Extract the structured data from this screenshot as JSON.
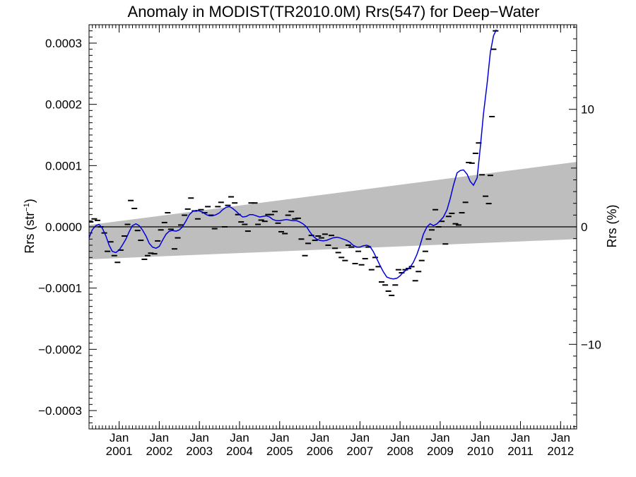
{
  "chart_data": {
    "type": "line",
    "title": "Anomaly in MODIST(TR2010.0M) Rrs(547) for Deep−Water",
    "ylabel_left_base": "Rrs (str",
    "ylabel_left_sup": "−1",
    "ylabel_left_end": ")",
    "ylabel_right": "Rrs (%)",
    "xlim": [
      2000.25,
      2012.4
    ],
    "ylim": [
      -0.00033,
      0.00033
    ],
    "ylim_right_pct": [
      -17.2,
      17.2
    ],
    "x_ticks": [
      {
        "x": 2001.0,
        "label1": "Jan",
        "label2": "2001"
      },
      {
        "x": 2002.0,
        "label1": "Jan",
        "label2": "2002"
      },
      {
        "x": 2003.0,
        "label1": "Jan",
        "label2": "2003"
      },
      {
        "x": 2004.0,
        "label1": "Jan",
        "label2": "2004"
      },
      {
        "x": 2005.0,
        "label1": "Jan",
        "label2": "2005"
      },
      {
        "x": 2006.0,
        "label1": "Jan",
        "label2": "2006"
      },
      {
        "x": 2007.0,
        "label1": "Jan",
        "label2": "2007"
      },
      {
        "x": 2008.0,
        "label1": "Jan",
        "label2": "2008"
      },
      {
        "x": 2009.0,
        "label1": "Jan",
        "label2": "2009"
      },
      {
        "x": 2010.0,
        "label1": "Jan",
        "label2": "2010"
      },
      {
        "x": 2011.0,
        "label1": "Jan",
        "label2": "2011"
      },
      {
        "x": 2012.0,
        "label1": "Jan",
        "label2": "2012"
      }
    ],
    "y_ticks_left": [
      {
        "v": 0.0003,
        "label": "0.0003"
      },
      {
        "v": 0.0002,
        "label": "0.0002"
      },
      {
        "v": 0.0001,
        "label": "0.0001"
      },
      {
        "v": 0.0,
        "label": "0.0000"
      },
      {
        "v": -0.0001,
        "label": "−0.0001"
      },
      {
        "v": -0.0002,
        "label": "−0.0002"
      },
      {
        "v": -0.0003,
        "label": "−0.0003"
      }
    ],
    "y_ticks_right": [
      {
        "v": 10,
        "label": "10"
      },
      {
        "v": 0,
        "label": "0"
      },
      {
        "v": -10,
        "label": "−10"
      }
    ],
    "band": {
      "color": "#bebebe",
      "x": [
        2000.25,
        2012.4
      ],
      "upper": [
        3e-06,
        0.000106
      ],
      "lower": [
        -5.3e-05,
        -2e-05
      ]
    },
    "zero_line": true,
    "smooth_color": "#0000dd",
    "smooth": [
      [
        2000.25,
        -1.8e-05
      ],
      [
        2000.33,
        -5e-06
      ],
      [
        2000.42,
        2e-06
      ],
      [
        2000.5,
        4e-06
      ],
      [
        2000.58,
        -2e-06
      ],
      [
        2000.67,
        -1.5e-05
      ],
      [
        2000.75,
        -3e-05
      ],
      [
        2000.83,
        -4e-05
      ],
      [
        2000.92,
        -4.2e-05
      ],
      [
        2001.0,
        -3.8e-05
      ],
      [
        2001.08,
        -3e-05
      ],
      [
        2001.17,
        -2e-05
      ],
      [
        2001.25,
        -8e-06
      ],
      [
        2001.33,
        2e-06
      ],
      [
        2001.42,
        5e-06
      ],
      [
        2001.5,
        2e-06
      ],
      [
        2001.58,
        -5e-06
      ],
      [
        2001.67,
        -1.5e-05
      ],
      [
        2001.75,
        -2.7e-05
      ],
      [
        2001.83,
        -3.3e-05
      ],
      [
        2001.92,
        -3.5e-05
      ],
      [
        2002.0,
        -3.2e-05
      ],
      [
        2002.08,
        -2.2e-05
      ],
      [
        2002.17,
        -1.2e-05
      ],
      [
        2002.25,
        -7e-06
      ],
      [
        2002.33,
        -6e-06
      ],
      [
        2002.42,
        -7e-06
      ],
      [
        2002.5,
        -5e-06
      ],
      [
        2002.58,
        0.0
      ],
      [
        2002.67,
        1e-05
      ],
      [
        2002.75,
        2e-05
      ],
      [
        2002.83,
        2.5e-05
      ],
      [
        2002.92,
        2.7e-05
      ],
      [
        2003.0,
        2.6e-05
      ],
      [
        2003.08,
        2.4e-05
      ],
      [
        2003.17,
        2e-05
      ],
      [
        2003.25,
        1.8e-05
      ],
      [
        2003.33,
        1.8e-05
      ],
      [
        2003.42,
        2e-05
      ],
      [
        2003.5,
        2.3e-05
      ],
      [
        2003.58,
        2.8e-05
      ],
      [
        2003.67,
        3.2e-05
      ],
      [
        2003.75,
        3.3e-05
      ],
      [
        2003.83,
        3e-05
      ],
      [
        2003.92,
        2.5e-05
      ],
      [
        2004.0,
        2e-05
      ],
      [
        2004.08,
        1.6e-05
      ],
      [
        2004.17,
        1.7e-05
      ],
      [
        2004.25,
        2e-05
      ],
      [
        2004.33,
        2e-05
      ],
      [
        2004.42,
        1.8e-05
      ],
      [
        2004.5,
        1.6e-05
      ],
      [
        2004.58,
        1.7e-05
      ],
      [
        2004.67,
        1.8e-05
      ],
      [
        2004.75,
        1.6e-05
      ],
      [
        2004.83,
        1.2e-05
      ],
      [
        2004.92,
        1e-05
      ],
      [
        2005.0,
        1e-05
      ],
      [
        2005.08,
        1.1e-05
      ],
      [
        2005.17,
        1.2e-05
      ],
      [
        2005.25,
        1.1e-05
      ],
      [
        2005.33,
        1e-05
      ],
      [
        2005.42,
        1e-05
      ],
      [
        2005.5,
        8e-06
      ],
      [
        2005.58,
        5e-06
      ],
      [
        2005.67,
        0.0
      ],
      [
        2005.75,
        -8e-06
      ],
      [
        2005.83,
        -1.5e-05
      ],
      [
        2005.92,
        -2e-05
      ],
      [
        2006.0,
        -2.2e-05
      ],
      [
        2006.08,
        -2.3e-05
      ],
      [
        2006.17,
        -2.2e-05
      ],
      [
        2006.25,
        -2e-05
      ],
      [
        2006.33,
        -1.8e-05
      ],
      [
        2006.42,
        -1.7e-05
      ],
      [
        2006.5,
        -1.8e-05
      ],
      [
        2006.58,
        -2e-05
      ],
      [
        2006.67,
        -2.2e-05
      ],
      [
        2006.75,
        -2.5e-05
      ],
      [
        2006.83,
        -3e-05
      ],
      [
        2006.92,
        -3.3e-05
      ],
      [
        2007.0,
        -3.3e-05
      ],
      [
        2007.08,
        -3.1e-05
      ],
      [
        2007.17,
        -3e-05
      ],
      [
        2007.25,
        -3.2e-05
      ],
      [
        2007.33,
        -4e-05
      ],
      [
        2007.42,
        -5.2e-05
      ],
      [
        2007.5,
        -6.3e-05
      ],
      [
        2007.58,
        -7.3e-05
      ],
      [
        2007.67,
        -8.2e-05
      ],
      [
        2007.75,
        -8.4e-05
      ],
      [
        2007.83,
        -8.5e-05
      ],
      [
        2007.92,
        -8.4e-05
      ],
      [
        2008.0,
        -8e-05
      ],
      [
        2008.08,
        -7.4e-05
      ],
      [
        2008.17,
        -7e-05
      ],
      [
        2008.25,
        -6.6e-05
      ],
      [
        2008.33,
        -5.8e-05
      ],
      [
        2008.42,
        -4.5e-05
      ],
      [
        2008.5,
        -3e-05
      ],
      [
        2008.58,
        -1.2e-05
      ],
      [
        2008.67,
        0.0
      ],
      [
        2008.75,
        5e-06
      ],
      [
        2008.83,
        2e-06
      ],
      [
        2008.92,
        5e-06
      ],
      [
        2009.0,
        1e-05
      ],
      [
        2009.08,
        1.6e-05
      ],
      [
        2009.17,
        2.8e-05
      ],
      [
        2009.25,
        4.6e-05
      ],
      [
        2009.33,
        6.8e-05
      ],
      [
        2009.42,
        8.8e-05
      ],
      [
        2009.5,
        9.2e-05
      ],
      [
        2009.58,
        9.3e-05
      ],
      [
        2009.67,
        8.6e-05
      ],
      [
        2009.75,
        7.4e-05
      ],
      [
        2009.83,
        6.8e-05
      ],
      [
        2009.92,
        8e-05
      ],
      [
        2010.0,
        0.00013
      ],
      [
        2010.08,
        0.000185
      ],
      [
        2010.17,
        0.000235
      ],
      [
        2010.25,
        0.000285
      ],
      [
        2010.33,
        0.000312
      ],
      [
        2010.4,
        0.000322
      ]
    ],
    "points": [
      [
        2000.29,
        8e-06
      ],
      [
        2000.38,
        1.3e-05
      ],
      [
        2000.46,
        1.05e-05
      ],
      [
        2000.54,
        0.0
      ],
      [
        2000.63,
        -1e-05
      ],
      [
        2000.71,
        -4e-05
      ],
      [
        2000.79,
        -2.45e-05
      ],
      [
        2000.88,
        -4.7e-05
      ],
      [
        2000.96,
        -5.8e-05
      ],
      [
        2001.04,
        -3.8e-05
      ],
      [
        2001.13,
        -1.5e-05
      ],
      [
        2001.21,
        4e-06
      ],
      [
        2001.29,
        4.3e-05
      ],
      [
        2001.38,
        3e-05
      ],
      [
        2001.46,
        -6e-06
      ],
      [
        2001.54,
        -2.2e-05
      ],
      [
        2001.63,
        -5.3e-05
      ],
      [
        2001.71,
        -4.7e-05
      ],
      [
        2001.79,
        -4.3e-05
      ],
      [
        2001.88,
        -4.4e-05
      ],
      [
        2001.96,
        -2.3e-05
      ],
      [
        2002.04,
        -5e-06
      ],
      [
        2002.13,
        7e-06
      ],
      [
        2002.21,
        2.3e-05
      ],
      [
        2002.29,
        -4e-06
      ],
      [
        2002.38,
        -3.6e-05
      ],
      [
        2002.46,
        -1.8e-05
      ],
      [
        2002.54,
        3e-06
      ],
      [
        2002.63,
        1.9e-05
      ],
      [
        2002.71,
        2.9e-05
      ],
      [
        2002.79,
        4.7e-05
      ],
      [
        2002.88,
        2.6e-05
      ],
      [
        2002.96,
        1.3e-05
      ],
      [
        2003.04,
        2.8e-05
      ],
      [
        2003.13,
        2.3e-05
      ],
      [
        2003.21,
        3.3e-05
      ],
      [
        2003.29,
        1.9e-05
      ],
      [
        2003.38,
        -3e-06
      ],
      [
        2003.46,
        3.3e-05
      ],
      [
        2003.54,
        4e-05
      ],
      [
        2003.63,
        0.0
      ],
      [
        2003.71,
        3.5e-05
      ],
      [
        2003.79,
        4.9e-05
      ],
      [
        2003.88,
        3.9e-05
      ],
      [
        2003.96,
        2e-05
      ],
      [
        2004.04,
        8e-06
      ],
      [
        2004.13,
        4e-06
      ],
      [
        2004.21,
        -7e-06
      ],
      [
        2004.29,
        3.9e-05
      ],
      [
        2004.38,
        3.9e-05
      ],
      [
        2004.46,
        4e-06
      ],
      [
        2004.54,
        1.1e-05
      ],
      [
        2004.63,
        9e-06
      ],
      [
        2004.71,
        2e-05
      ],
      [
        2004.79,
        2e-05
      ],
      [
        2004.88,
        2.5e-05
      ],
      [
        2004.96,
        6e-06
      ],
      [
        2005.04,
        -8e-06
      ],
      [
        2005.13,
        -1.1e-05
      ],
      [
        2005.21,
        1.9e-05
      ],
      [
        2005.29,
        2.5e-05
      ],
      [
        2005.38,
        1.3e-05
      ],
      [
        2005.46,
        1.4e-05
      ],
      [
        2005.54,
        -2e-05
      ],
      [
        2005.63,
        -4.7e-05
      ],
      [
        2005.71,
        -2.7e-05
      ],
      [
        2005.79,
        -1.4e-05
      ],
      [
        2005.88,
        -2.2e-05
      ],
      [
        2005.96,
        -1.5e-05
      ],
      [
        2006.04,
        -1.8e-05
      ],
      [
        2006.13,
        -1.2e-05
      ],
      [
        2006.21,
        -3e-05
      ],
      [
        2006.29,
        -1.4e-05
      ],
      [
        2006.38,
        -3.5e-05
      ],
      [
        2006.46,
        -4.2e-05
      ],
      [
        2006.54,
        -5e-05
      ],
      [
        2006.63,
        -5.5e-05
      ],
      [
        2006.71,
        -3e-05
      ],
      [
        2006.79,
        -3.3e-05
      ],
      [
        2006.88,
        -6e-05
      ],
      [
        2006.96,
        -4e-05
      ],
      [
        2007.04,
        -6.2e-05
      ],
      [
        2007.13,
        -5.2e-05
      ],
      [
        2007.21,
        -3.3e-05
      ],
      [
        2007.29,
        -7e-05
      ],
      [
        2007.38,
        -5e-05
      ],
      [
        2007.46,
        -6.5e-05
      ],
      [
        2007.54,
        -9e-05
      ],
      [
        2007.63,
        -9.5e-05
      ],
      [
        2007.71,
        -0.000105
      ],
      [
        2007.79,
        -0.000112
      ],
      [
        2007.88,
        -9.5e-05
      ],
      [
        2007.96,
        -7e-05
      ],
      [
        2008.04,
        -7.5e-05
      ],
      [
        2008.13,
        -7e-05
      ],
      [
        2008.21,
        -6.8e-05
      ],
      [
        2008.29,
        -6.5e-05
      ],
      [
        2008.38,
        -8.8e-05
      ],
      [
        2008.46,
        -7.3e-05
      ],
      [
        2008.54,
        -5.5e-05
      ],
      [
        2008.63,
        -4e-05
      ],
      [
        2008.71,
        -2e-05
      ],
      [
        2008.79,
        -5e-06
      ],
      [
        2008.88,
        2.8e-05
      ],
      [
        2008.96,
        0.0
      ],
      [
        2009.04,
        9e-06
      ],
      [
        2009.13,
        -2.8e-05
      ],
      [
        2009.21,
        1.7e-05
      ],
      [
        2009.29,
        2.2e-05
      ],
      [
        2009.38,
        5e-06
      ],
      [
        2009.46,
        3e-06
      ],
      [
        2009.54,
        2.3e-05
      ],
      [
        2009.63,
        4e-05
      ],
      [
        2009.71,
        0.000105
      ],
      [
        2009.79,
        0.000104
      ],
      [
        2009.88,
        0.00012
      ],
      [
        2009.96,
        0.000137
      ],
      [
        2010.04,
        8.5e-05
      ],
      [
        2010.13,
        5e-05
      ],
      [
        2010.21,
        3.8e-05
      ],
      [
        2010.25,
        8.4e-05
      ],
      [
        2010.29,
        0.00018
      ],
      [
        2010.33,
        0.00029
      ],
      [
        2010.38,
        0.00032
      ]
    ]
  }
}
